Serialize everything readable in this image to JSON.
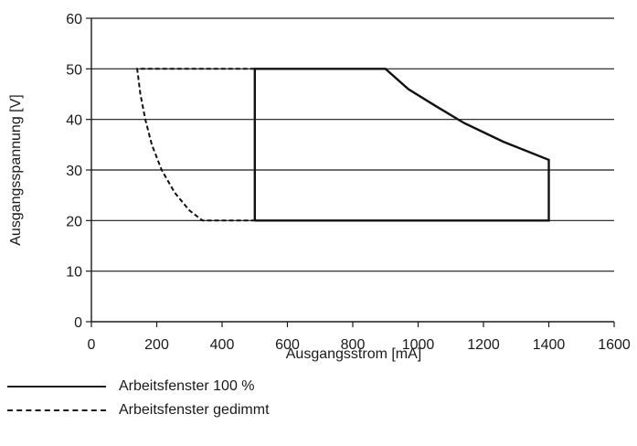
{
  "chart_data": {
    "type": "line",
    "xlabel": "Ausgangsstrom [mA]",
    "ylabel": "Ausgangsspannung [V]",
    "xlim": [
      0,
      1600
    ],
    "ylim": [
      0,
      60
    ],
    "xticks": [
      0,
      200,
      400,
      600,
      800,
      1000,
      1200,
      1400,
      1600
    ],
    "yticks": [
      0,
      10,
      20,
      30,
      40,
      50,
      60
    ],
    "grid": "horizontal",
    "legend_position": "bottom-left",
    "series": [
      {
        "name": "Arbeitsfenster 100 %",
        "style": "solid",
        "x": [
          500,
          500,
          900,
          970,
          1050,
          1140,
          1260,
          1400,
          1400,
          500
        ],
        "y": [
          20,
          50,
          50,
          46,
          42.8,
          39.3,
          35.6,
          32,
          20,
          20
        ]
      },
      {
        "name": "Arbeitsfenster gedimmt",
        "style": "dashed",
        "x": [
          500,
          140,
          150,
          165,
          185,
          215,
          255,
          300,
          340,
          500
        ],
        "y": [
          50,
          50,
          45,
          40,
          35,
          30,
          25.5,
          22,
          20,
          20
        ]
      }
    ]
  }
}
